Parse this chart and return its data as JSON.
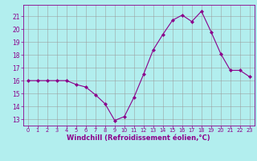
{
  "x": [
    0,
    1,
    2,
    3,
    4,
    5,
    6,
    7,
    8,
    9,
    10,
    11,
    12,
    13,
    14,
    15,
    16,
    17,
    18,
    19,
    20,
    21,
    22,
    23
  ],
  "y": [
    16.0,
    16.0,
    16.0,
    16.0,
    16.0,
    15.7,
    15.5,
    14.9,
    14.2,
    12.9,
    13.2,
    14.7,
    16.5,
    18.4,
    19.6,
    20.7,
    21.1,
    20.6,
    21.4,
    19.8,
    18.1,
    16.8,
    16.8,
    16.3
  ],
  "line_color": "#8B008B",
  "marker": "D",
  "marker_size": 2.0,
  "bg_color": "#b2eeee",
  "grid_color": "#999999",
  "xlabel": "Windchill (Refroidissement éolien,°C)",
  "xlim": [
    -0.5,
    23.5
  ],
  "ylim": [
    12.5,
    21.9
  ],
  "yticks": [
    13,
    14,
    15,
    16,
    17,
    18,
    19,
    20,
    21
  ],
  "xtick_labels": [
    "0",
    "1",
    "2",
    "3",
    "4",
    "5",
    "6",
    "7",
    "8",
    "9",
    "10",
    "11",
    "12",
    "13",
    "14",
    "15",
    "16",
    "17",
    "18",
    "19",
    "20",
    "21",
    "22",
    "23"
  ],
  "xlabel_color": "#8B008B",
  "tick_color": "#8B008B",
  "spine_color": "#8B008B"
}
